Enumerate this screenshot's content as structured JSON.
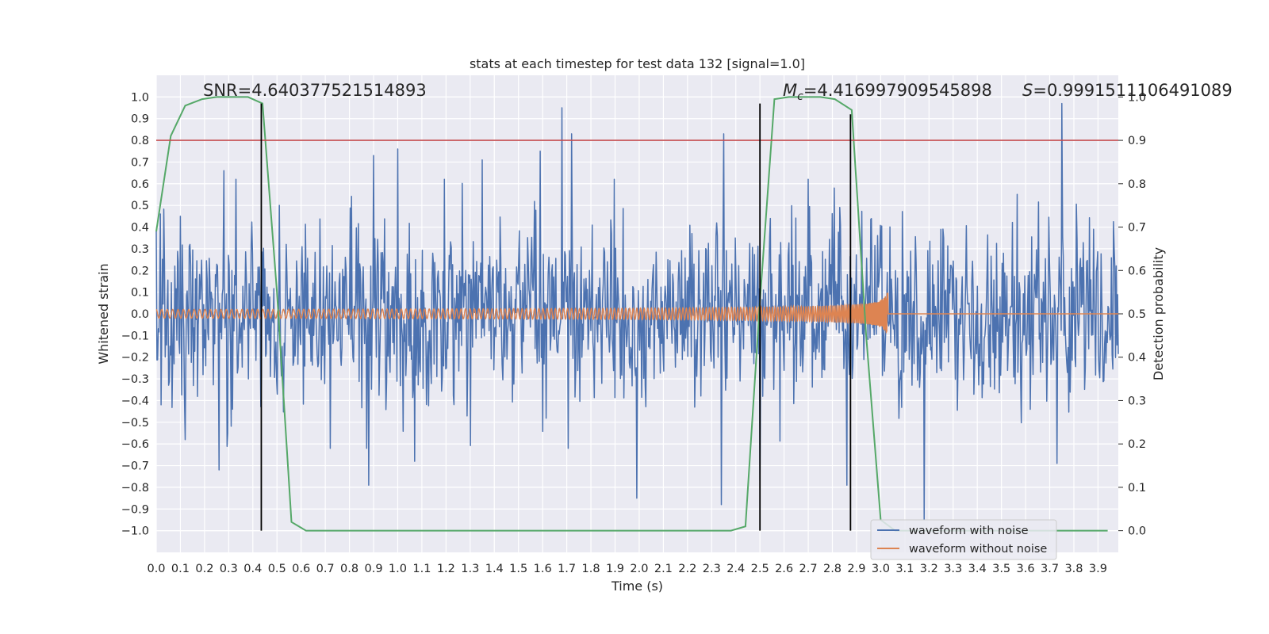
{
  "chart_data": {
    "type": "line",
    "title": "stats at each timestep for test data 132 [signal=1.0]",
    "xlabel": "Time (s)",
    "ylabel": "Whitened strain",
    "y2label": "Detection probability",
    "xlim": [
      0.0,
      3.984
    ],
    "ylim": [
      -1.1,
      1.1
    ],
    "y2lim": [
      -0.05,
      1.05
    ],
    "xticks": [
      0.0,
      0.1,
      0.2,
      0.3,
      0.4,
      0.5,
      0.6,
      0.7,
      0.8,
      0.9,
      1.0,
      1.1,
      1.2,
      1.3,
      1.4,
      1.5,
      1.6,
      1.7,
      1.8,
      1.9,
      2.0,
      2.1,
      2.2,
      2.3,
      2.4,
      2.5,
      2.6,
      2.7,
      2.8,
      2.9,
      3.0,
      3.1,
      3.2,
      3.3,
      3.4,
      3.5,
      3.6,
      3.7,
      3.8,
      3.9
    ],
    "xtick_labels": [
      "0.0",
      "0.1",
      "0.2",
      "0.3",
      "0.4",
      "0.5",
      "0.6",
      "0.7",
      "0.8",
      "0.9",
      "1.0",
      "1.1",
      "1.2",
      "1.3",
      "1.4",
      "1.5",
      "1.6",
      "1.7",
      "1.8",
      "1.9",
      "2.0",
      "2.1",
      "2.2",
      "2.3",
      "2.4",
      "2.5",
      "2.6",
      "2.7",
      "2.8",
      "2.9",
      "3.0",
      "3.1",
      "3.2",
      "3.3",
      "3.4",
      "3.5",
      "3.6",
      "3.7",
      "3.8",
      "3.9"
    ],
    "yticks": [
      1.0,
      0.9,
      0.8,
      0.7,
      0.6,
      0.5,
      0.4,
      0.3,
      0.2,
      0.1,
      0.0,
      -0.1,
      -0.2,
      -0.3,
      -0.4,
      -0.5,
      -0.6,
      -0.7,
      -0.8,
      -0.9,
      -1.0
    ],
    "ytick_labels": [
      "1.0",
      "0.9",
      "0.8",
      "0.7",
      "0.6",
      "0.5",
      "0.4",
      "0.3",
      "0.2",
      "0.1",
      "0.0",
      "−0.1",
      "−0.2",
      "−0.3",
      "−0.4",
      "−0.5",
      "−0.6",
      "−0.7",
      "−0.8",
      "−0.9",
      "−1.0"
    ],
    "y2ticks": [
      1.0,
      0.9,
      0.8,
      0.7,
      0.6,
      0.5,
      0.4,
      0.3,
      0.2,
      0.1,
      0.0
    ],
    "y2tick_labels": [
      "1.0",
      "0.9",
      "0.8",
      "0.7",
      "0.6",
      "0.5",
      "0.4",
      "0.3",
      "0.2",
      "0.1",
      "0.0"
    ],
    "grid": true,
    "legend_position": "lower-right",
    "annotations": {
      "snr": "SNR=4.640377521514893",
      "mc_symbol": "M",
      "mc_sub": "c",
      "mc_value": "=4.416997909545898",
      "s_symbol": "S",
      "s_value": "=0.9991511106491089"
    },
    "series": [
      {
        "name": "waveform with noise",
        "color": "#4c72b0",
        "axis": "left",
        "description": "whitened noisy strain, dense random oscillation",
        "envelope_peaks": [
          {
            "x": 0.0,
            "y": 0.38
          },
          {
            "x": 0.02,
            "y": -0.42
          },
          {
            "x": 0.1,
            "y": 0.45
          },
          {
            "x": 0.12,
            "y": -0.58
          },
          {
            "x": 0.28,
            "y": 0.66
          },
          {
            "x": 0.26,
            "y": -0.72
          },
          {
            "x": 0.33,
            "y": 0.62
          },
          {
            "x": 0.9,
            "y": 0.73
          },
          {
            "x": 0.88,
            "y": -0.79
          },
          {
            "x": 1.0,
            "y": 0.76
          },
          {
            "x": 1.07,
            "y": -0.68
          },
          {
            "x": 1.35,
            "y": 0.71
          },
          {
            "x": 1.59,
            "y": 0.75
          },
          {
            "x": 1.68,
            "y": 0.95
          },
          {
            "x": 1.72,
            "y": 0.83
          },
          {
            "x": 1.99,
            "y": -0.85
          },
          {
            "x": 2.34,
            "y": -0.88
          },
          {
            "x": 2.35,
            "y": 0.83
          },
          {
            "x": 2.5,
            "y": -0.77
          },
          {
            "x": 2.86,
            "y": -0.79
          },
          {
            "x": 3.18,
            "y": -0.95
          },
          {
            "x": 3.75,
            "y": 0.97
          },
          {
            "x": 3.73,
            "y": -0.69
          }
        ],
        "noise_std": 0.2
      },
      {
        "name": "waveform without noise",
        "color": "#dd8452",
        "axis": "left",
        "description": "chirp waveform growing in amplitude and frequency until merger",
        "amplitude_start": 0.02,
        "amplitude_at_merger": 0.12,
        "merger_time": 3.03,
        "post_merger_value": 0.0
      },
      {
        "name": "",
        "color": "#55a868",
        "axis": "right",
        "x": [
          0.0,
          0.06,
          0.12,
          0.19,
          0.25,
          0.31,
          0.38,
          0.44,
          0.5,
          0.56,
          0.62,
          0.69,
          0.75,
          0.81,
          0.88,
          0.94,
          1.0,
          1.06,
          1.12,
          1.19,
          1.25,
          1.31,
          1.38,
          1.44,
          1.5,
          1.56,
          1.62,
          1.69,
          1.75,
          1.81,
          1.88,
          1.94,
          2.0,
          2.06,
          2.12,
          2.19,
          2.25,
          2.31,
          2.38,
          2.44,
          2.5,
          2.56,
          2.62,
          2.69,
          2.75,
          2.81,
          2.88,
          2.94,
          3.0,
          3.06,
          3.12,
          3.19,
          3.25,
          3.31,
          3.38,
          3.44,
          3.5,
          3.56,
          3.62,
          3.69,
          3.75,
          3.81,
          3.88,
          3.94
        ],
        "y": [
          0.69,
          0.91,
          0.98,
          0.995,
          1.0,
          1.0,
          1.0,
          0.985,
          0.55,
          0.02,
          0.0,
          0.0,
          0.0,
          0.0,
          0.0,
          0.0,
          0.0,
          0.0,
          0.0,
          0.0,
          0.0,
          0.0,
          0.0,
          0.0,
          0.0,
          0.0,
          0.0,
          0.0,
          0.0,
          0.0,
          0.0,
          0.0,
          0.0,
          0.0,
          0.0,
          0.0,
          0.0,
          0.0,
          0.0,
          0.01,
          0.53,
          0.995,
          1.0,
          1.0,
          1.0,
          0.995,
          0.97,
          0.45,
          0.025,
          0.0,
          0.0,
          0.0,
          0.0,
          0.0,
          0.0,
          0.0,
          0.0,
          0.0,
          0.0,
          0.0,
          0.0,
          0.0,
          0.0,
          0.0
        ]
      }
    ],
    "hlines": [
      {
        "axis": "right",
        "y": 0.9,
        "color": "#c44e52"
      }
    ],
    "vlines": [
      {
        "x": 0.435,
        "y_from": -1.0,
        "y_to": 0.97,
        "color": "#000000"
      },
      {
        "x": 2.5,
        "y_from": -1.0,
        "y_to": 0.97,
        "color": "#000000"
      },
      {
        "x": 2.875,
        "y_from": -1.0,
        "y_to": 0.92,
        "color": "#000000"
      }
    ],
    "colors": {
      "plot_bg": "#eaeaf2",
      "grid": "#ffffff",
      "text": "#262626"
    }
  }
}
